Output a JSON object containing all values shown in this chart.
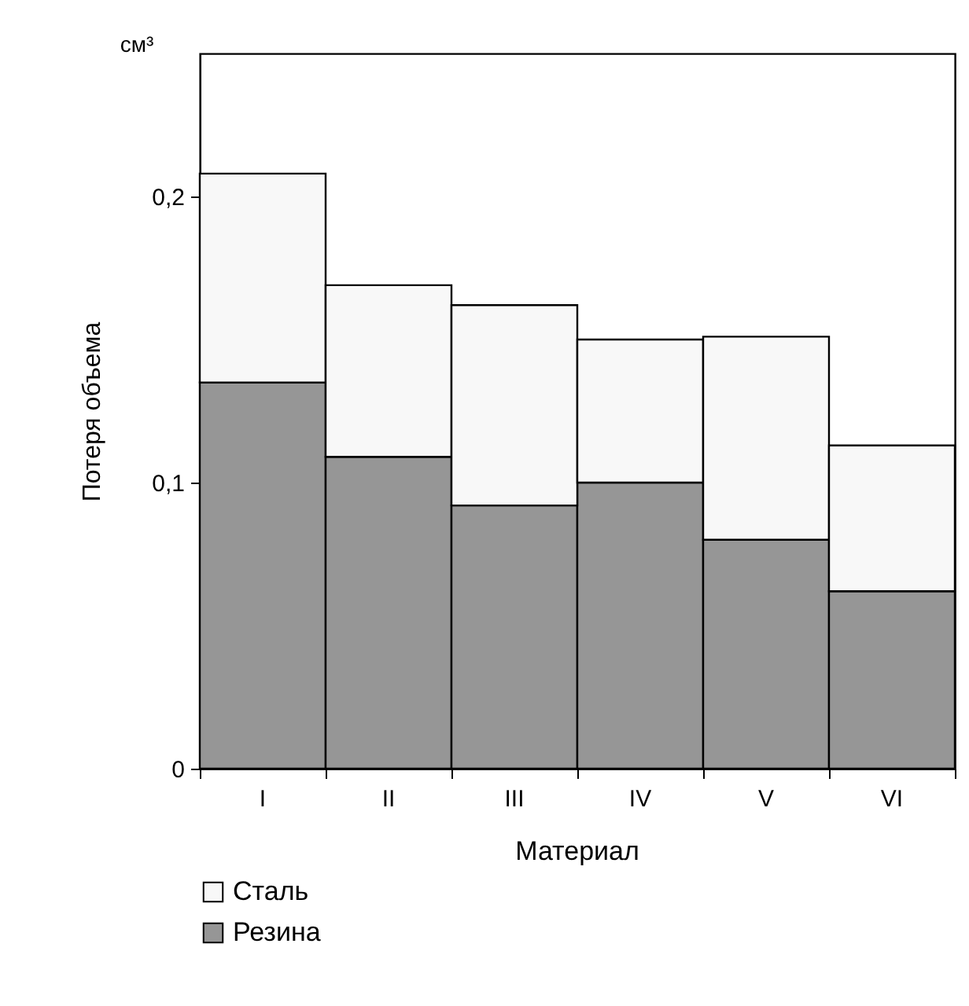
{
  "chart_data": {
    "type": "bar",
    "stacked": true,
    "categories": [
      "I",
      "II",
      "III",
      "IV",
      "V",
      "VI"
    ],
    "series": [
      {
        "name": "Резина",
        "color": "#969696",
        "values": [
          0.135,
          0.109,
          0.092,
          0.1,
          0.08,
          0.062
        ]
      },
      {
        "name": "Сталь",
        "color": "#f8f8f8",
        "values": [
          0.073,
          0.06,
          0.07,
          0.05,
          0.071,
          0.051
        ]
      }
    ],
    "xlabel": "Материал",
    "ylabel": "Потеря объема",
    "annotations": [
      "см³"
    ],
    "ylim": [
      0,
      0.25
    ],
    "yticks": [
      0,
      {
        "value": 0.1,
        "label": "0,1"
      },
      {
        "value": 0.2,
        "label": "0,2"
      }
    ],
    "grid": false,
    "legend": "bottom left"
  }
}
